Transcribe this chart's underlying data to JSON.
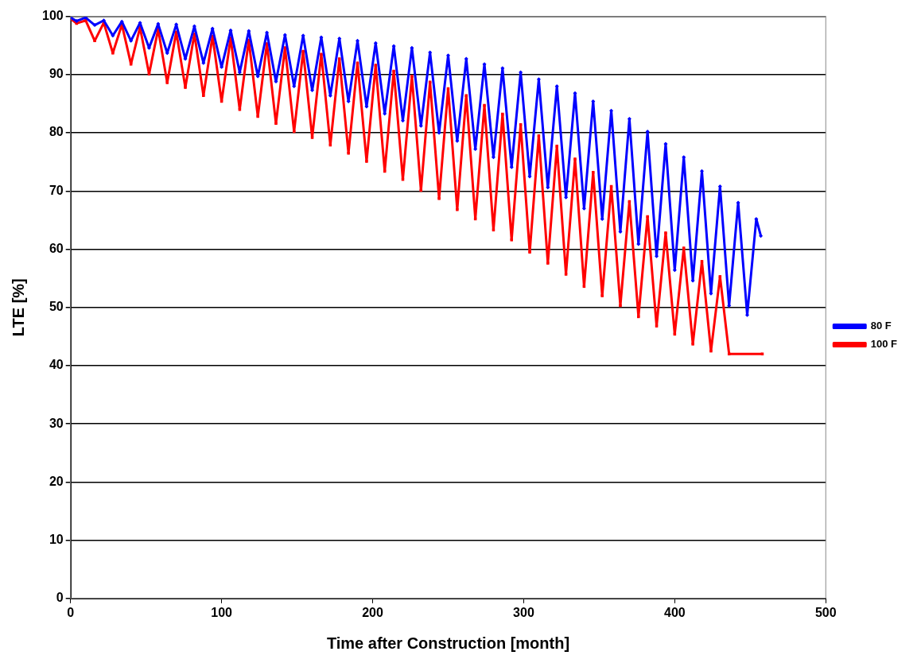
{
  "chart_data": {
    "type": "line",
    "xlabel": "Time after Construction [month]",
    "ylabel": "LTE [%]",
    "xlim": [
      0,
      500
    ],
    "xticks": [
      0,
      100,
      200,
      300,
      400,
      500
    ],
    "ylim": [
      0,
      100
    ],
    "yticks": [
      0,
      10,
      20,
      30,
      40,
      50,
      60,
      70,
      80,
      90,
      100
    ],
    "grid": "y",
    "legend": "right",
    "line_style": "solid",
    "series": [
      {
        "name": "80 F",
        "color": "#0000ff",
        "marker": "diamond",
        "x": [
          0,
          4,
          10,
          16,
          22,
          28,
          34,
          40,
          46,
          52,
          58,
          64,
          70,
          76,
          82,
          88,
          94,
          100,
          106,
          112,
          118,
          124,
          130,
          136,
          142,
          148,
          154,
          160,
          166,
          172,
          178,
          184,
          190,
          196,
          202,
          208,
          214,
          220,
          226,
          232,
          238,
          244,
          250,
          256,
          262,
          268,
          274,
          280,
          286,
          292,
          298,
          304,
          310,
          316,
          322,
          328,
          334,
          340,
          346,
          352,
          358,
          364,
          370,
          376,
          382,
          388,
          394,
          400,
          406,
          412,
          418,
          424,
          430,
          436,
          442,
          448,
          454,
          457
        ],
        "values": [
          99.8,
          99.2,
          99.8,
          98.5,
          99.3,
          96.7,
          99.1,
          95.8,
          98.9,
          94.6,
          98.7,
          93.7,
          98.6,
          92.7,
          98.3,
          92.0,
          97.9,
          91.3,
          97.6,
          90.4,
          97.5,
          89.7,
          97.2,
          88.8,
          96.8,
          88.0,
          96.7,
          87.3,
          96.4,
          86.4,
          96.2,
          85.4,
          95.8,
          84.5,
          95.4,
          83.3,
          94.9,
          82.1,
          94.6,
          81.2,
          93.8,
          80.0,
          93.3,
          78.6,
          92.7,
          77.2,
          91.8,
          75.8,
          91.1,
          74.1,
          90.4,
          72.5,
          89.2,
          70.6,
          88.0,
          68.9,
          86.8,
          67.0,
          85.4,
          65.2,
          83.8,
          63.0,
          82.4,
          60.9,
          80.2,
          58.8,
          78.1,
          56.4,
          75.8,
          54.6,
          73.4,
          52.4,
          70.8,
          50.3,
          68.0,
          48.7,
          65.2,
          62.3
        ]
      },
      {
        "name": "100 F",
        "color": "#ff0000",
        "marker": "square",
        "x": [
          0,
          4,
          10,
          16,
          22,
          28,
          34,
          40,
          46,
          52,
          58,
          64,
          70,
          76,
          82,
          88,
          94,
          100,
          106,
          112,
          118,
          124,
          130,
          136,
          142,
          148,
          154,
          160,
          166,
          172,
          178,
          184,
          190,
          196,
          202,
          208,
          214,
          220,
          226,
          232,
          238,
          244,
          250,
          256,
          262,
          268,
          274,
          280,
          286,
          292,
          298,
          304,
          310,
          316,
          322,
          328,
          334,
          340,
          346,
          352,
          358,
          364,
          370,
          376,
          382,
          388,
          394,
          400,
          406,
          412,
          418,
          424,
          430,
          436,
          458
        ],
        "values": [
          99.6,
          98.8,
          99.3,
          95.8,
          98.9,
          93.7,
          98.6,
          91.8,
          98.1,
          90.1,
          97.8,
          88.6,
          97.3,
          87.8,
          97.0,
          86.4,
          96.6,
          85.4,
          96.3,
          84.0,
          95.9,
          82.8,
          95.3,
          81.6,
          94.6,
          80.2,
          94.0,
          79.2,
          93.5,
          77.9,
          92.7,
          76.5,
          92.0,
          75.1,
          91.6,
          73.4,
          90.6,
          72.0,
          89.7,
          70.1,
          88.7,
          68.7,
          87.6,
          66.8,
          86.4,
          65.2,
          84.7,
          63.3,
          83.2,
          61.6,
          81.4,
          59.5,
          79.5,
          57.6,
          77.7,
          55.7,
          75.5,
          53.6,
          73.2,
          52.0,
          70.8,
          50.3,
          68.2,
          48.4,
          65.6,
          46.8,
          62.8,
          45.4,
          60.2,
          43.7,
          57.9,
          42.5,
          55.3,
          42.0,
          42.0
        ]
      }
    ]
  }
}
